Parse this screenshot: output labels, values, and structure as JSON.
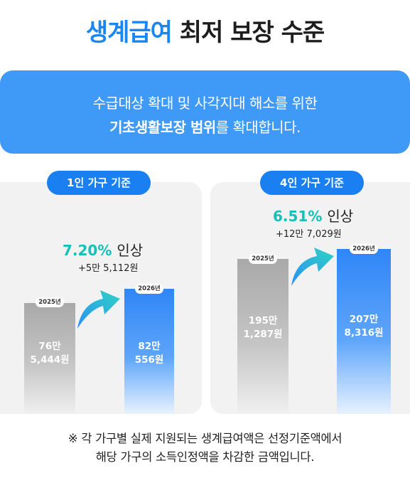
{
  "title": {
    "highlight": "생계급여",
    "rest": "최저 보장 수준"
  },
  "banner": {
    "line1": "수급대상 확대 및 사각지대 해소를 위한",
    "line2_bold": "기초생활보장 범위",
    "line2_rest": "를 확대합니다."
  },
  "panels": [
    {
      "label": "1인 가구 기준",
      "increase_pct": "7.20%",
      "increase_word": "인상",
      "increase_amount": "+5만 5,112원",
      "before": {
        "year": "2025년",
        "amount_line1": "76만",
        "amount_line2": "5,444원"
      },
      "after": {
        "year": "2026년",
        "amount_line1": "82만",
        "amount_line2": "556원"
      }
    },
    {
      "label": "4인 가구 기준",
      "increase_pct": "6.51%",
      "increase_word": "인상",
      "increase_amount": "+12만 7,029원",
      "before": {
        "year": "2025년",
        "amount_line1": "195만",
        "amount_line2": "1,287원"
      },
      "after": {
        "year": "2026년",
        "amount_line1": "207만",
        "amount_line2": "8,316원"
      }
    }
  ],
  "footnote": {
    "line1": "※ 각 가구별 실제 지원되는 생계급여액은 선정기준액에서",
    "line2": "해당 가구의 소득인정액을 차감한 금액입니다."
  },
  "colors": {
    "accent_blue": "#1a86f0",
    "banner_blue": "#3f9af7",
    "increase_teal": "#13c1b8",
    "card_bg": "#f2f2f3"
  },
  "icons": [
    "up-arrow-icon"
  ]
}
